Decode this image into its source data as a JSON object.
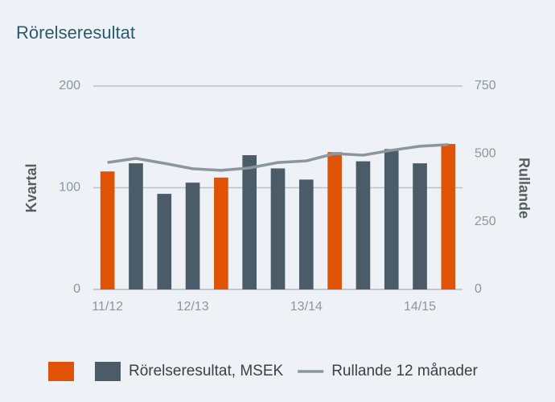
{
  "chart_data": {
    "type": "bar_line",
    "title": "Rörelseresultat",
    "y_label": "Kvartal",
    "y2_label": "Rullande",
    "categories": [
      "11/12",
      null,
      null,
      "12/13",
      null,
      null,
      null,
      "13/14",
      null,
      null,
      null,
      "14/15",
      null
    ],
    "series": [
      {
        "name": "Rörelseresultat, MSEK",
        "type": "bar",
        "color": "#4b5b67",
        "accent_color": "#e05206",
        "accent_indices": [
          0,
          4,
          8,
          12
        ],
        "values": [
          116,
          124,
          94,
          105,
          110,
          132,
          119,
          108,
          135,
          126,
          138,
          124,
          143
        ]
      },
      {
        "name": "Rullande 12 månader",
        "type": "line",
        "axis": "y2",
        "color": "#8c969e",
        "values": [
          468,
          483,
          465,
          445,
          439,
          448,
          468,
          474,
          501,
          495,
          513,
          528,
          534
        ]
      }
    ],
    "ylim": [
      0,
      200
    ],
    "yticks": [
      0,
      100,
      200
    ],
    "y2lim": [
      0,
      750
    ],
    "y2ticks": [
      0,
      250,
      500,
      750
    ],
    "grid": true
  }
}
